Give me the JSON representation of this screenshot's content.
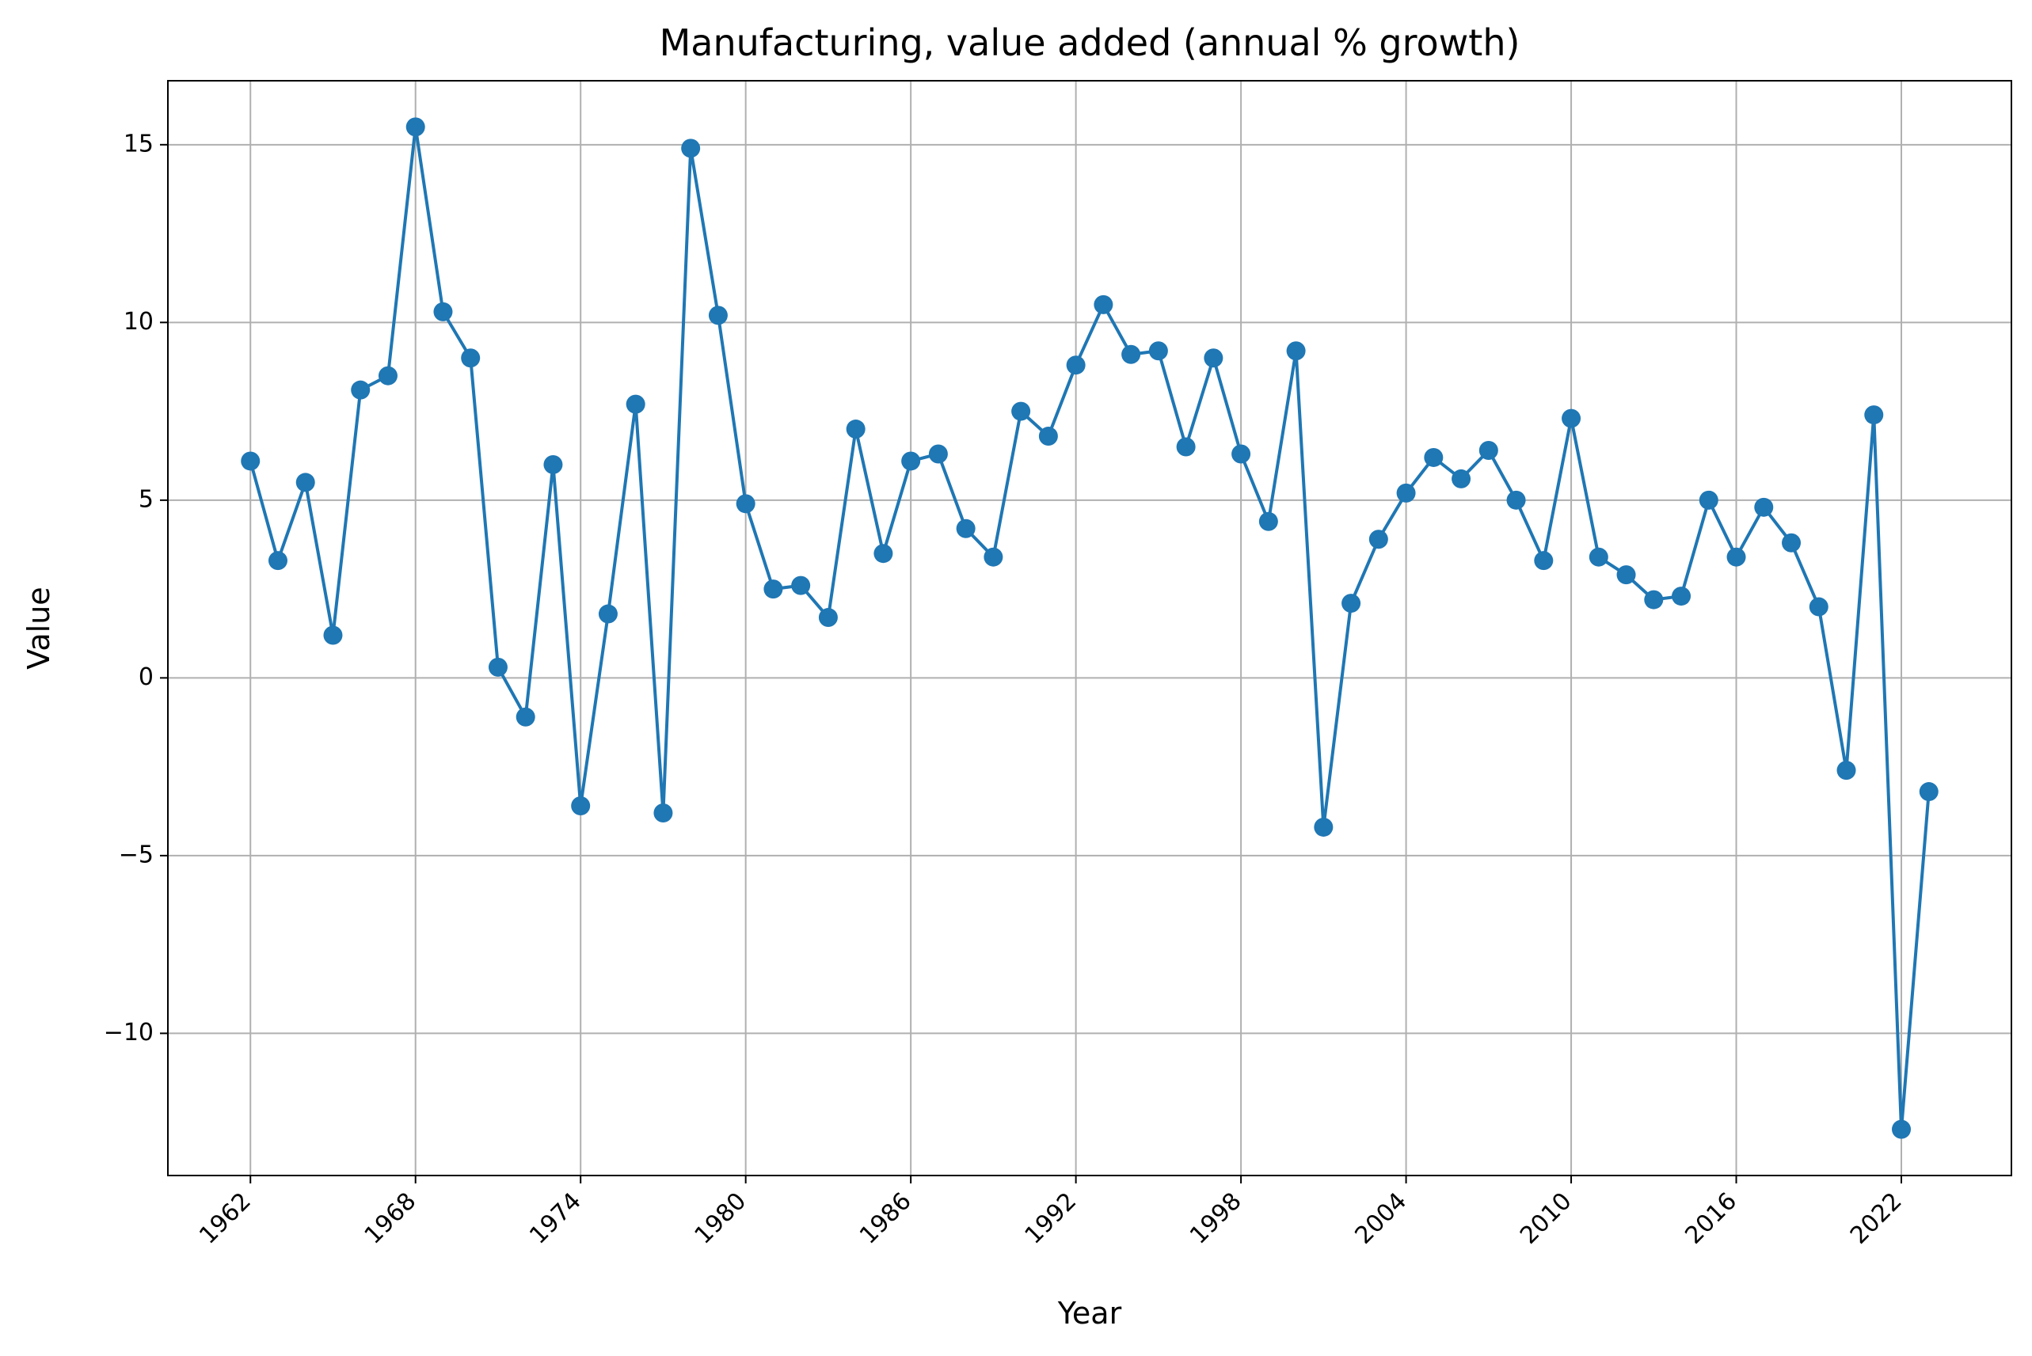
{
  "chart_data": {
    "type": "line",
    "title": "Manufacturing, value added (annual % growth)",
    "xlabel": "Year",
    "ylabel": "Value",
    "xlim": [
      1959,
      2026
    ],
    "ylim": [
      -14,
      16.8
    ],
    "x_ticks": [
      1962,
      1968,
      1974,
      1980,
      1986,
      1992,
      1998,
      2004,
      2010,
      2016,
      2022
    ],
    "x_tick_labels": [
      "1962",
      "1968",
      "1974",
      "1980",
      "1986",
      "1992",
      "1998",
      "2004",
      "2010",
      "2016",
      "2022"
    ],
    "y_ticks": [
      15,
      10,
      5,
      0,
      -5,
      -10
    ],
    "y_tick_labels": [
      "15",
      "10",
      "5",
      "0",
      "−5",
      "−10"
    ],
    "grid": true,
    "x_tick_rotation": 45,
    "colors": {
      "line": "#1f77b4",
      "marker": "#1f77b4",
      "grid": "#b0b0b0"
    },
    "series": [
      {
        "x": [
          1962,
          1963,
          1964,
          1965,
          1966,
          1967,
          1968,
          1969,
          1970,
          1971,
          1972,
          1973,
          1974,
          1975,
          1976,
          1977,
          1978,
          1979,
          1980,
          1981,
          1982,
          1983,
          1984,
          1985,
          1986,
          1987,
          1988,
          1989,
          1990,
          1991,
          1992,
          1993,
          1994,
          1995,
          1996,
          1997,
          1998,
          1999,
          2000,
          2001,
          2002,
          2003,
          2004,
          2005,
          2006,
          2007,
          2008,
          2009,
          2010,
          2011,
          2012,
          2013,
          2014,
          2015,
          2016,
          2017,
          2018,
          2019,
          2020,
          2021,
          2022,
          2023
        ],
        "values": [
          6.1,
          3.3,
          5.5,
          1.2,
          8.1,
          8.5,
          15.5,
          10.3,
          9.0,
          0.3,
          -1.1,
          6.0,
          -3.6,
          1.8,
          7.7,
          -3.8,
          14.9,
          10.2,
          4.9,
          2.5,
          2.6,
          1.7,
          7.0,
          3.5,
          6.1,
          6.3,
          4.2,
          3.4,
          7.5,
          6.8,
          8.8,
          10.5,
          9.1,
          9.2,
          6.5,
          9.0,
          6.3,
          4.4,
          9.2,
          -4.2,
          2.1,
          3.9,
          5.2,
          6.2,
          5.6,
          6.4,
          5.0,
          3.3,
          7.3,
          3.4,
          2.9,
          2.2,
          2.3,
          5.0,
          3.4,
          4.8,
          3.8,
          2.0,
          -2.6,
          7.4,
          -12.7,
          -3.2
        ]
      }
    ]
  }
}
